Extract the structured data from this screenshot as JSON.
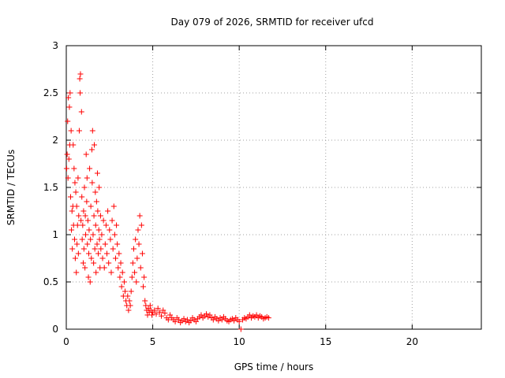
{
  "chart_data": {
    "type": "scatter",
    "title": "Day 079 of 2026, SRMTID for receiver ufcd",
    "xlabel": "GPS time / hours",
    "ylabel": "SRMTID / TECUs",
    "xlim": [
      0,
      24
    ],
    "ylim": [
      0,
      3
    ],
    "xticks": [
      0,
      5,
      10,
      15,
      20
    ],
    "yticks": [
      0,
      0.5,
      1,
      1.5,
      2,
      2.5,
      3
    ],
    "grid": true,
    "marker": "+",
    "series": [
      {
        "name": "SRMTID",
        "color": "#ff0000",
        "x": [
          0.02,
          0.05,
          0.08,
          0.1,
          0.12,
          0.15,
          0.18,
          0.2,
          0.22,
          0.25,
          0.28,
          0.3,
          0.33,
          0.35,
          0.38,
          0.4,
          0.42,
          0.45,
          0.48,
          0.5,
          0.52,
          0.55,
          0.58,
          0.6,
          0.62,
          0.65,
          0.68,
          0.7,
          0.72,
          0.75,
          0.78,
          0.8,
          0.82,
          0.85,
          0.88,
          0.9,
          0.92,
          0.95,
          0.98,
          1.0,
          1.02,
          1.05,
          1.08,
          1.1,
          1.12,
          1.15,
          1.18,
          1.2,
          1.22,
          1.25,
          1.28,
          1.3,
          1.32,
          1.35,
          1.38,
          1.4,
          1.42,
          1.45,
          1.48,
          1.5,
          1.52,
          1.55,
          1.58,
          1.6,
          1.62,
          1.65,
          1.68,
          1.7,
          1.72,
          1.75,
          1.78,
          1.8,
          1.82,
          1.85,
          1.88,
          1.9,
          1.92,
          1.95,
          1.98,
          2.0,
          2.05,
          2.1,
          2.15,
          2.2,
          2.25,
          2.3,
          2.35,
          2.4,
          2.45,
          2.5,
          2.55,
          2.6,
          2.65,
          2.7,
          2.75,
          2.8,
          2.85,
          2.9,
          2.95,
          3.0,
          3.05,
          3.1,
          3.15,
          3.2,
          3.25,
          3.3,
          3.35,
          3.4,
          3.45,
          3.5,
          3.55,
          3.6,
          3.65,
          3.7,
          3.75,
          3.8,
          3.85,
          3.9,
          3.95,
          4.0,
          4.05,
          4.1,
          4.15,
          4.2,
          4.25,
          4.3,
          4.35,
          4.4,
          4.45,
          4.5,
          4.55,
          4.6,
          4.65,
          4.7,
          4.75,
          4.8,
          4.85,
          4.9,
          4.95,
          5.0,
          5.1,
          5.2,
          5.3,
          5.4,
          5.5,
          5.6,
          5.7,
          5.8,
          5.9,
          6.0,
          6.1,
          6.2,
          6.3,
          6.4,
          6.5,
          6.6,
          6.7,
          6.8,
          6.9,
          7.0,
          7.1,
          7.2,
          7.3,
          7.4,
          7.5,
          7.6,
          7.7,
          7.8,
          7.9,
          8.0,
          8.1,
          8.2,
          8.3,
          8.4,
          8.5,
          8.6,
          8.7,
          8.8,
          8.9,
          9.0,
          9.1,
          9.2,
          9.3,
          9.4,
          9.5,
          9.6,
          9.7,
          9.8,
          9.9,
          10.0,
          10.1,
          10.2,
          10.3,
          10.4,
          10.5,
          10.6,
          10.7,
          10.8,
          10.9,
          11.0,
          11.1,
          11.2,
          11.3,
          11.4,
          11.5,
          11.6,
          11.7
        ],
        "y": [
          1.7,
          1.85,
          2.2,
          1.6,
          2.45,
          1.8,
          2.35,
          1.95,
          2.5,
          1.4,
          2.1,
          1.05,
          1.25,
          0.85,
          1.3,
          1.95,
          1.1,
          1.7,
          0.95,
          1.55,
          0.75,
          1.45,
          0.6,
          1.3,
          0.9,
          1.1,
          1.6,
          0.8,
          1.2,
          2.1,
          2.65,
          2.5,
          2.7,
          1.15,
          2.3,
          1.4,
          0.95,
          1.1,
          0.7,
          1.25,
          0.85,
          1.5,
          0.65,
          1.2,
          1.0,
          1.85,
          1.35,
          1.6,
          0.9,
          1.15,
          0.55,
          0.8,
          1.05,
          1.7,
          0.5,
          0.95,
          1.3,
          0.75,
          1.9,
          1.55,
          2.1,
          1.0,
          0.7,
          1.2,
          1.95,
          0.85,
          1.45,
          1.1,
          0.6,
          1.35,
          0.9,
          1.65,
          1.25,
          0.8,
          1.05,
          1.5,
          0.95,
          0.65,
          1.2,
          0.85,
          1.0,
          0.75,
          1.15,
          0.65,
          0.9,
          1.1,
          0.8,
          1.25,
          0.7,
          1.05,
          0.95,
          0.6,
          1.15,
          0.85,
          1.3,
          1.0,
          0.75,
          1.1,
          0.9,
          0.65,
          0.8,
          0.55,
          0.7,
          0.45,
          0.6,
          0.35,
          0.5,
          0.4,
          0.3,
          0.25,
          0.35,
          0.2,
          0.3,
          0.25,
          0.4,
          0.55,
          0.7,
          0.85,
          0.6,
          0.95,
          0.5,
          0.75,
          1.05,
          0.9,
          1.2,
          0.65,
          1.1,
          0.8,
          0.45,
          0.55,
          0.3,
          0.25,
          0.2,
          0.15,
          0.22,
          0.18,
          0.25,
          0.2,
          0.15,
          0.18,
          0.2,
          0.16,
          0.22,
          0.18,
          0.14,
          0.2,
          0.17,
          0.12,
          0.1,
          0.15,
          0.12,
          0.1,
          0.08,
          0.12,
          0.1,
          0.07,
          0.09,
          0.11,
          0.08,
          0.1,
          0.07,
          0.09,
          0.12,
          0.1,
          0.08,
          0.11,
          0.13,
          0.15,
          0.12,
          0.14,
          0.16,
          0.13,
          0.15,
          0.12,
          0.1,
          0.13,
          0.11,
          0.09,
          0.12,
          0.1,
          0.13,
          0.11,
          0.09,
          0.08,
          0.1,
          0.11,
          0.09,
          0.12,
          0.1,
          0.08,
          0.0,
          0.1,
          0.12,
          0.11,
          0.13,
          0.15,
          0.12,
          0.14,
          0.13,
          0.15,
          0.12,
          0.14,
          0.13,
          0.11,
          0.12,
          0.13,
          0.12
        ]
      }
    ]
  }
}
